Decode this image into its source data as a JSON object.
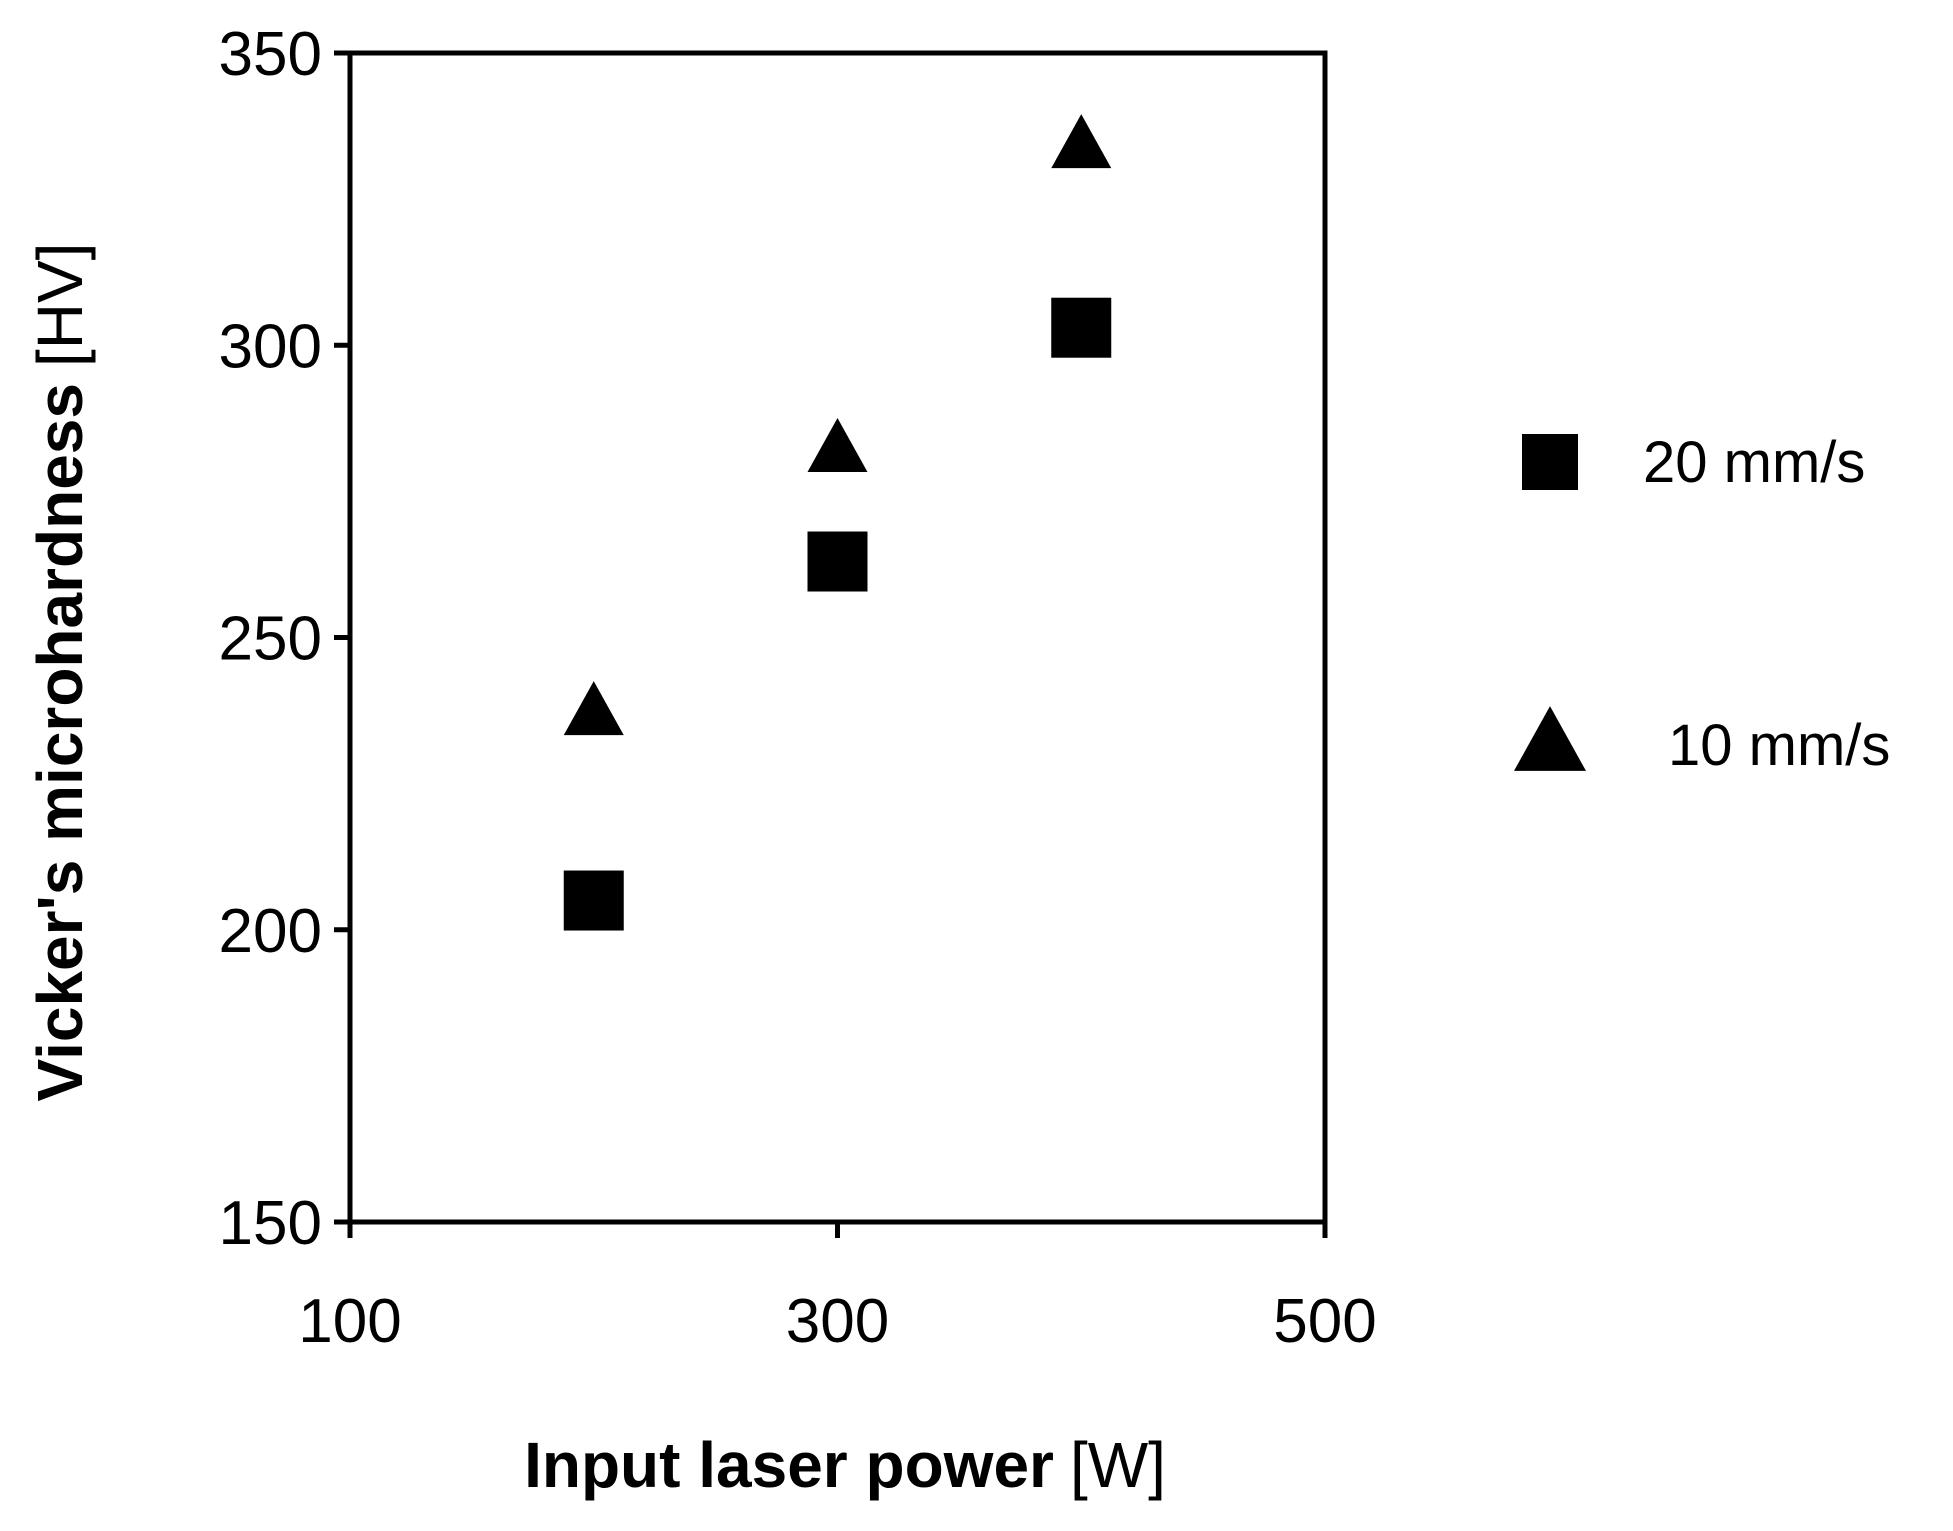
{
  "chart_data": {
    "type": "scatter",
    "x_axis": {
      "label": "Input laser power",
      "unit": "[W]",
      "range": [
        100,
        500
      ],
      "ticks": [
        100,
        300,
        500
      ],
      "tick_labels": [
        "100",
        "300",
        "500"
      ]
    },
    "y_axis": {
      "label": "Vicker's microhardness",
      "unit": "[HV]",
      "range": [
        150,
        350
      ],
      "ticks": [
        150,
        200,
        250,
        300,
        350
      ],
      "tick_labels": [
        "150",
        "200",
        "250",
        "300",
        "350"
      ]
    },
    "grid": false,
    "legend_position": "right",
    "series": [
      {
        "name": "20 mm/s",
        "marker": "square",
        "color": "#000000",
        "points": [
          {
            "x": 200,
            "y": 205
          },
          {
            "x": 300,
            "y": 263
          },
          {
            "x": 400,
            "y": 303
          }
        ]
      },
      {
        "name": "10 mm/s",
        "marker": "triangle",
        "color": "#000000",
        "points": [
          {
            "x": 200,
            "y": 237
          },
          {
            "x": 300,
            "y": 282
          },
          {
            "x": 400,
            "y": 334
          }
        ]
      }
    ]
  }
}
